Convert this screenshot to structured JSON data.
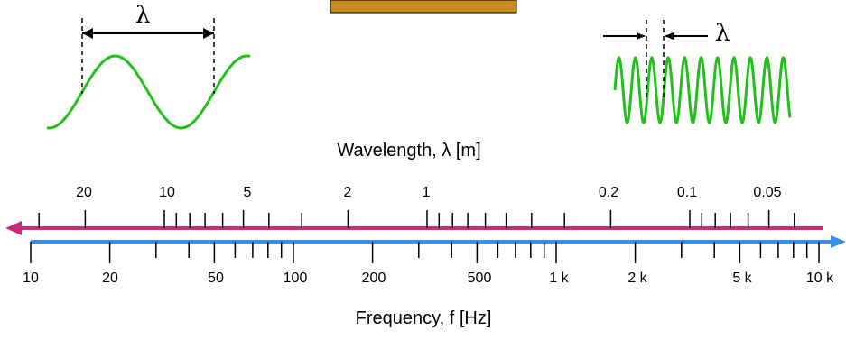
{
  "colors": {
    "wave": "#22c01a",
    "wavelength_axis": "#cc2a78",
    "frequency_axis": "#3a8ee6",
    "banner": "#c98a20",
    "ink": "#000000"
  },
  "symbols": {
    "lambda_left": "λ",
    "lambda_right": "λ"
  },
  "wavelength_axis": {
    "title": "Wavelength, λ [m]",
    "direction": "decreasing to the right",
    "labels": [
      "20",
      "10",
      "5",
      "2",
      "1",
      "0.2",
      "0.1",
      "0.05"
    ]
  },
  "frequency_axis": {
    "title": "Frequency, f [Hz]",
    "direction": "increasing to the right",
    "labels": [
      "10",
      "20",
      "50",
      "100",
      "200",
      "500",
      "1 k",
      "2 k",
      "5 k",
      "10 k"
    ]
  }
}
